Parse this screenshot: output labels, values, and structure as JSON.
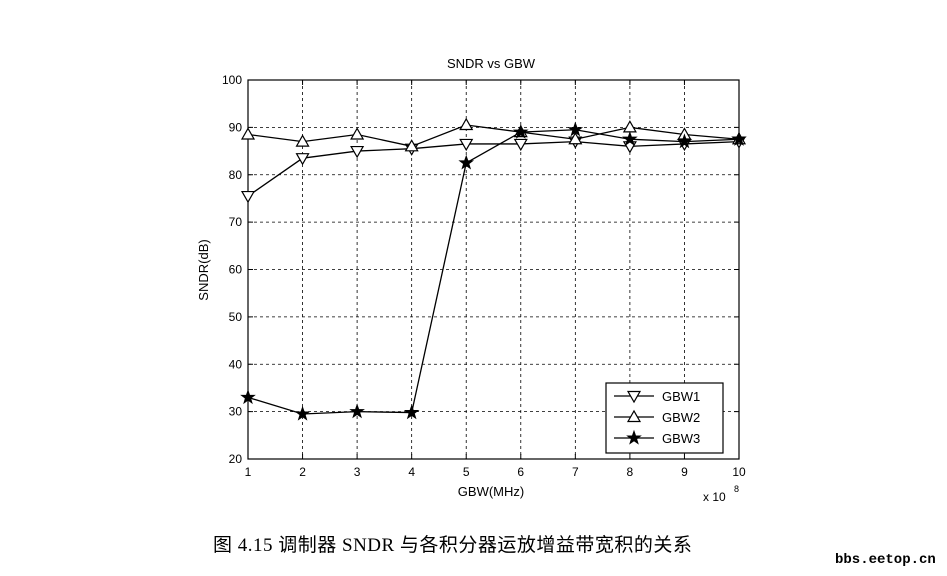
{
  "chart_data": {
    "type": "line",
    "title": "SNDR vs GBW",
    "xlabel": "GBW(MHz)",
    "ylabel": "SNDR(dB)",
    "x_multiplier": "x 10",
    "x_multiplier_exp": "8",
    "x": [
      1,
      2,
      3,
      4,
      5,
      6,
      7,
      8,
      9,
      10
    ],
    "xlim": [
      1,
      10
    ],
    "ylim": [
      20,
      100
    ],
    "xticks": [
      "1",
      "2",
      "3",
      "4",
      "5",
      "6",
      "7",
      "8",
      "9",
      "10"
    ],
    "yticks": [
      "20",
      "30",
      "40",
      "50",
      "60",
      "70",
      "80",
      "90",
      "100"
    ],
    "grid": true,
    "legend_position": "bottom-right",
    "series": [
      {
        "name": "GBW1",
        "marker": "triangle-down",
        "values": [
          75.5,
          83.5,
          85.0,
          85.5,
          86.5,
          86.5,
          87.0,
          86.0,
          86.5,
          87.0
        ]
      },
      {
        "name": "GBW2",
        "marker": "triangle-up",
        "values": [
          88.5,
          87.0,
          88.5,
          86.0,
          90.5,
          89.0,
          87.5,
          90.0,
          88.5,
          87.5
        ]
      },
      {
        "name": "GBW3",
        "marker": "star",
        "values": [
          33.0,
          29.5,
          30.0,
          29.8,
          82.5,
          89.0,
          89.5,
          87.5,
          87.0,
          87.5
        ]
      }
    ]
  },
  "caption": "图 4.15  调制器 SNDR 与各积分器运放增益带宽积的关系",
  "watermark": "bbs.eetop.cn"
}
